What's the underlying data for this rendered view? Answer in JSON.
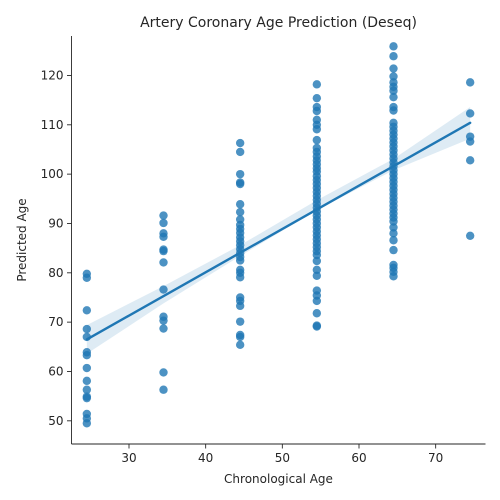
{
  "chart_data": {
    "type": "scatter",
    "title": "Artery Coronary Age Prediction (Deseq)",
    "xlabel": "Chronological Age",
    "ylabel": "Predicted Age",
    "xlim": [
      22.5,
      76.5
    ],
    "ylim": [
      45.3,
      128
    ],
    "xticks": [
      30,
      40,
      50,
      60,
      70
    ],
    "yticks": [
      50,
      60,
      70,
      80,
      90,
      100,
      110,
      120
    ],
    "grid": false,
    "legend": "none",
    "color": "#1f77b4",
    "regression": {
      "x": [
        24.5,
        74.5
      ],
      "y": [
        66.5,
        110.4
      ]
    },
    "confidence_band": {
      "x": [
        24.5,
        34.5,
        44.5,
        54.5,
        64.5,
        74.5
      ],
      "lower": [
        63.6,
        73.8,
        83.4,
        92.7,
        100.8,
        107.2
      ],
      "upper": [
        69.4,
        77.3,
        85.6,
        94.7,
        103.1,
        113.6
      ]
    },
    "points": [
      {
        "x": 24.5,
        "y": 79.8
      },
      {
        "x": 24.5,
        "y": 79.0
      },
      {
        "x": 24.5,
        "y": 72.4
      },
      {
        "x": 24.5,
        "y": 68.6
      },
      {
        "x": 24.5,
        "y": 67.0
      },
      {
        "x": 24.5,
        "y": 63.9
      },
      {
        "x": 24.5,
        "y": 63.3
      },
      {
        "x": 24.5,
        "y": 60.7
      },
      {
        "x": 24.5,
        "y": 58.1
      },
      {
        "x": 24.5,
        "y": 56.3
      },
      {
        "x": 24.5,
        "y": 54.9
      },
      {
        "x": 24.5,
        "y": 54.6
      },
      {
        "x": 24.5,
        "y": 51.4
      },
      {
        "x": 24.5,
        "y": 50.5
      },
      {
        "x": 24.5,
        "y": 49.5
      },
      {
        "x": 34.5,
        "y": 91.6
      },
      {
        "x": 34.5,
        "y": 90.1
      },
      {
        "x": 34.5,
        "y": 88.0
      },
      {
        "x": 34.5,
        "y": 87.3
      },
      {
        "x": 34.5,
        "y": 84.7
      },
      {
        "x": 34.5,
        "y": 84.4
      },
      {
        "x": 34.5,
        "y": 82.1
      },
      {
        "x": 34.5,
        "y": 76.6
      },
      {
        "x": 34.5,
        "y": 71.1
      },
      {
        "x": 34.5,
        "y": 70.3
      },
      {
        "x": 34.5,
        "y": 68.7
      },
      {
        "x": 34.5,
        "y": 59.8
      },
      {
        "x": 34.5,
        "y": 56.3
      },
      {
        "x": 44.5,
        "y": 106.3
      },
      {
        "x": 44.5,
        "y": 104.5
      },
      {
        "x": 44.5,
        "y": 100.0
      },
      {
        "x": 44.5,
        "y": 98.3
      },
      {
        "x": 44.5,
        "y": 98.0
      },
      {
        "x": 44.5,
        "y": 93.9
      },
      {
        "x": 44.5,
        "y": 92.3
      },
      {
        "x": 44.5,
        "y": 90.8
      },
      {
        "x": 44.5,
        "y": 89.7
      },
      {
        "x": 44.5,
        "y": 88.9
      },
      {
        "x": 44.5,
        "y": 88.1
      },
      {
        "x": 44.5,
        "y": 87.2
      },
      {
        "x": 44.5,
        "y": 86.4
      },
      {
        "x": 44.5,
        "y": 85.6
      },
      {
        "x": 44.5,
        "y": 84.8
      },
      {
        "x": 44.5,
        "y": 84.0
      },
      {
        "x": 44.5,
        "y": 83.2
      },
      {
        "x": 44.5,
        "y": 82.5
      },
      {
        "x": 44.5,
        "y": 80.6
      },
      {
        "x": 44.5,
        "y": 80.0
      },
      {
        "x": 44.5,
        "y": 79.1
      },
      {
        "x": 44.5,
        "y": 75.0
      },
      {
        "x": 44.5,
        "y": 74.3
      },
      {
        "x": 44.5,
        "y": 73.3
      },
      {
        "x": 44.5,
        "y": 70.1
      },
      {
        "x": 44.5,
        "y": 67.4
      },
      {
        "x": 44.5,
        "y": 67.0
      },
      {
        "x": 44.5,
        "y": 65.4
      },
      {
        "x": 54.5,
        "y": 118.2
      },
      {
        "x": 54.5,
        "y": 115.4
      },
      {
        "x": 54.5,
        "y": 113.6
      },
      {
        "x": 54.5,
        "y": 112.8
      },
      {
        "x": 54.5,
        "y": 111.0
      },
      {
        "x": 54.5,
        "y": 110.0
      },
      {
        "x": 54.5,
        "y": 109.1
      },
      {
        "x": 54.5,
        "y": 106.9
      },
      {
        "x": 54.5,
        "y": 105.3
      },
      {
        "x": 54.5,
        "y": 104.5
      },
      {
        "x": 54.5,
        "y": 103.6
      },
      {
        "x": 54.5,
        "y": 102.8
      },
      {
        "x": 54.5,
        "y": 102.0
      },
      {
        "x": 54.5,
        "y": 101.2
      },
      {
        "x": 54.5,
        "y": 100.5
      },
      {
        "x": 54.5,
        "y": 99.6
      },
      {
        "x": 54.5,
        "y": 98.8
      },
      {
        "x": 54.5,
        "y": 98.0
      },
      {
        "x": 54.5,
        "y": 97.2
      },
      {
        "x": 54.5,
        "y": 96.4
      },
      {
        "x": 54.5,
        "y": 95.6
      },
      {
        "x": 54.5,
        "y": 94.8
      },
      {
        "x": 54.5,
        "y": 94.0
      },
      {
        "x": 54.5,
        "y": 93.2
      },
      {
        "x": 54.5,
        "y": 92.4
      },
      {
        "x": 54.5,
        "y": 91.6
      },
      {
        "x": 54.5,
        "y": 90.8
      },
      {
        "x": 54.5,
        "y": 90.0
      },
      {
        "x": 54.5,
        "y": 89.2
      },
      {
        "x": 54.5,
        "y": 88.4
      },
      {
        "x": 54.5,
        "y": 87.6
      },
      {
        "x": 54.5,
        "y": 86.8
      },
      {
        "x": 54.5,
        "y": 86.0
      },
      {
        "x": 54.5,
        "y": 85.2
      },
      {
        "x": 54.5,
        "y": 84.4
      },
      {
        "x": 54.5,
        "y": 83.6
      },
      {
        "x": 54.5,
        "y": 82.4
      },
      {
        "x": 54.5,
        "y": 80.6
      },
      {
        "x": 54.5,
        "y": 79.4
      },
      {
        "x": 54.5,
        "y": 76.4
      },
      {
        "x": 54.5,
        "y": 75.4
      },
      {
        "x": 54.5,
        "y": 74.3
      },
      {
        "x": 54.5,
        "y": 71.8
      },
      {
        "x": 54.5,
        "y": 69.3
      },
      {
        "x": 54.5,
        "y": 69.1
      },
      {
        "x": 64.5,
        "y": 125.9
      },
      {
        "x": 64.5,
        "y": 123.9
      },
      {
        "x": 64.5,
        "y": 121.4
      },
      {
        "x": 64.5,
        "y": 119.8
      },
      {
        "x": 64.5,
        "y": 118.6
      },
      {
        "x": 64.5,
        "y": 117.7
      },
      {
        "x": 64.5,
        "y": 116.9
      },
      {
        "x": 64.5,
        "y": 115.6
      },
      {
        "x": 64.5,
        "y": 113.6
      },
      {
        "x": 64.5,
        "y": 112.9
      },
      {
        "x": 64.5,
        "y": 110.4
      },
      {
        "x": 64.5,
        "y": 109.6
      },
      {
        "x": 64.5,
        "y": 108.8
      },
      {
        "x": 64.5,
        "y": 108.0
      },
      {
        "x": 64.5,
        "y": 107.2
      },
      {
        "x": 64.5,
        "y": 106.4
      },
      {
        "x": 64.5,
        "y": 105.6
      },
      {
        "x": 64.5,
        "y": 104.8
      },
      {
        "x": 64.5,
        "y": 104.0
      },
      {
        "x": 64.5,
        "y": 103.2
      },
      {
        "x": 64.5,
        "y": 102.4
      },
      {
        "x": 64.5,
        "y": 101.6
      },
      {
        "x": 64.5,
        "y": 100.8
      },
      {
        "x": 64.5,
        "y": 100.0
      },
      {
        "x": 64.5,
        "y": 99.2
      },
      {
        "x": 64.5,
        "y": 98.4
      },
      {
        "x": 64.5,
        "y": 97.6
      },
      {
        "x": 64.5,
        "y": 96.8
      },
      {
        "x": 64.5,
        "y": 96.0
      },
      {
        "x": 64.5,
        "y": 95.2
      },
      {
        "x": 64.5,
        "y": 94.4
      },
      {
        "x": 64.5,
        "y": 93.6
      },
      {
        "x": 64.5,
        "y": 92.8
      },
      {
        "x": 64.5,
        "y": 92.0
      },
      {
        "x": 64.5,
        "y": 91.2
      },
      {
        "x": 64.5,
        "y": 90.4
      },
      {
        "x": 64.5,
        "y": 89.2
      },
      {
        "x": 64.5,
        "y": 88.0
      },
      {
        "x": 64.5,
        "y": 86.6
      },
      {
        "x": 64.5,
        "y": 84.6
      },
      {
        "x": 64.5,
        "y": 81.6
      },
      {
        "x": 64.5,
        "y": 81.0
      },
      {
        "x": 64.5,
        "y": 80.2
      },
      {
        "x": 64.5,
        "y": 79.3
      },
      {
        "x": 74.5,
        "y": 118.6
      },
      {
        "x": 74.5,
        "y": 112.3
      },
      {
        "x": 74.5,
        "y": 107.6
      },
      {
        "x": 74.5,
        "y": 106.6
      },
      {
        "x": 74.5,
        "y": 102.8
      },
      {
        "x": 74.5,
        "y": 87.5
      }
    ]
  }
}
